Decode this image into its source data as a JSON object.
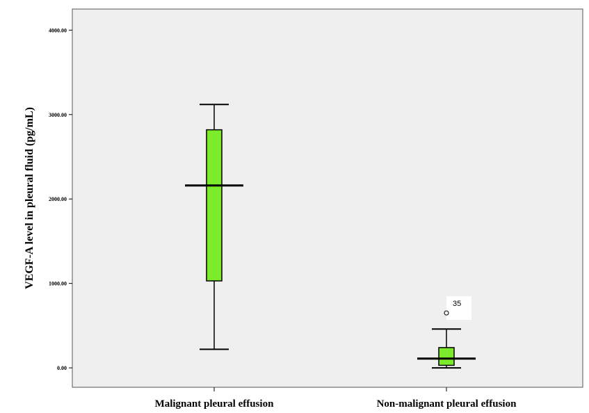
{
  "chart_data": {
    "type": "boxplot",
    "title": "",
    "xlabel": "",
    "ylabel": "VEGF-A level in pleural fluid (pg/mL)",
    "ylim": [
      -230,
      4250
    ],
    "yticks": [
      0,
      1000,
      2000,
      3000,
      4000
    ],
    "ytick_labels": [
      "0.00",
      "1000.00",
      "2000.00",
      "3000.00",
      "4000.00"
    ],
    "categories": [
      "Malignant pleural effusion",
      "Non-malignant pleural effusion"
    ],
    "boxes": [
      {
        "category": "Malignant pleural effusion",
        "whisker_low": 220,
        "q1": 1030,
        "median": 2160,
        "q3": 2820,
        "whisker_high": 3120,
        "outliers": []
      },
      {
        "category": "Non-malignant pleural effusion",
        "whisker_low": 0,
        "q1": 30,
        "median": 110,
        "q3": 240,
        "whisker_high": 460,
        "outliers": [
          {
            "value": 650,
            "label": "35"
          }
        ]
      }
    ],
    "grid": false,
    "legend": "none",
    "colors": {
      "box_fill": "#7CEB2B",
      "plot_bg": "#EFEFEF",
      "line": "#000000"
    }
  }
}
